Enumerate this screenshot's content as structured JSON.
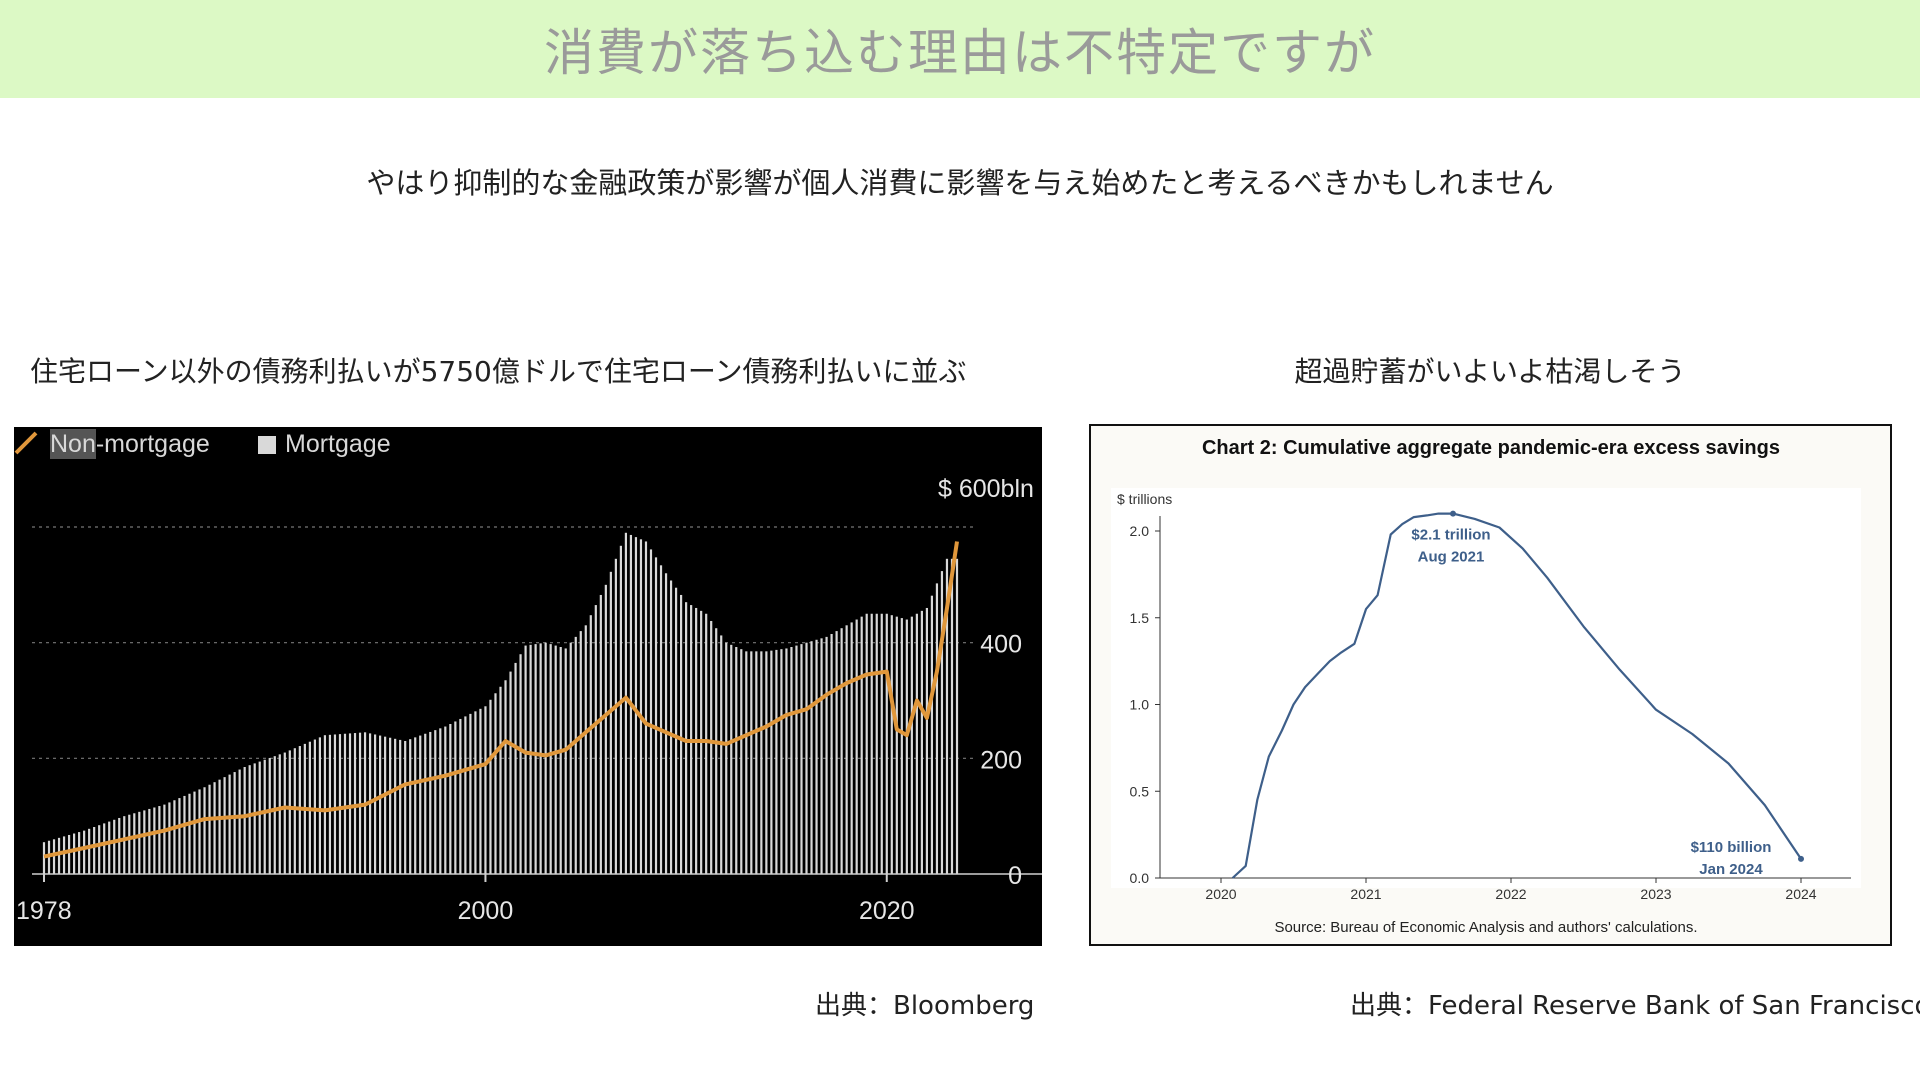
{
  "banner": {
    "title": "消費が落ち込む理由は不特定ですが"
  },
  "subtitle": "やはり抑制的な金融政策が影響が個人消費に影響を与え始めたと考えるべきかもしれません",
  "left_panel": {
    "heading": "住宅ローン以外の債務利払いが5750億ドルで住宅ローン債務利払いに並ぶ",
    "source": "出典：Bloomberg"
  },
  "right_panel": {
    "heading": "超過貯蓄がいよいよ枯渇しそう",
    "source": "出典：Federal Reserve Bank of San Francisco"
  },
  "colors": {
    "banner_bg": "#dcf9c5",
    "left_bg": "#000000",
    "non_mortgage": "#e0973b",
    "mortgage": "#d9d9d9",
    "savings_line": "#3e5f8a"
  },
  "chart_data": [
    {
      "type": "bar",
      "legend": [
        "Non-mortgage",
        "Mortgage"
      ],
      "legend_placement": "top-left",
      "top_label": "$ 600bln",
      "y_ticks": [
        "400",
        "200",
        "0"
      ],
      "x_ticks": [
        "1978",
        "2000",
        "2020"
      ],
      "ylim": [
        0,
        600
      ],
      "grid": true,
      "series": [
        {
          "name": "Mortgage",
          "type": "bar",
          "x": [
            1978,
            1980,
            1982,
            1984,
            1986,
            1988,
            1990,
            1992,
            1994,
            1996,
            1998,
            2000,
            2001,
            2002,
            2003,
            2004,
            2005,
            2006,
            2007,
            2008,
            2009,
            2010,
            2011,
            2012,
            2013,
            2014,
            2015,
            2016,
            2017,
            2018,
            2019,
            2020,
            2021,
            2022,
            2023
          ],
          "values": [
            55,
            75,
            100,
            120,
            150,
            185,
            210,
            240,
            245,
            230,
            255,
            290,
            335,
            395,
            400,
            390,
            430,
            500,
            590,
            575,
            520,
            470,
            450,
            400,
            385,
            385,
            390,
            400,
            410,
            430,
            450,
            450,
            440,
            460,
            545
          ]
        },
        {
          "name": "Non-mortgage",
          "type": "line",
          "x": [
            1978,
            1980,
            1982,
            1984,
            1986,
            1988,
            1990,
            1992,
            1994,
            1996,
            1998,
            2000,
            2001,
            2002,
            2003,
            2004,
            2005,
            2006,
            2007,
            2008,
            2009,
            2010,
            2011,
            2012,
            2013,
            2014,
            2015,
            2016,
            2017,
            2018,
            2019,
            2020,
            2020.5,
            2021,
            2021.5,
            2022,
            2022.5,
            2023,
            2023.5
          ],
          "values": [
            30,
            45,
            60,
            75,
            95,
            100,
            115,
            110,
            120,
            155,
            170,
            190,
            230,
            210,
            205,
            215,
            245,
            275,
            305,
            260,
            245,
            230,
            230,
            225,
            240,
            255,
            275,
            285,
            310,
            330,
            345,
            350,
            250,
            240,
            300,
            270,
            350,
            460,
            575
          ]
        }
      ]
    },
    {
      "type": "line",
      "title": "Chart 2: Cumulative aggregate pandemic-era excess savings",
      "ylabel": "$ trillions",
      "y_ticks": [
        "2.0",
        "1.5",
        "1.0",
        "0.5",
        "0.0"
      ],
      "x_ticks": [
        "2020",
        "2021",
        "2022",
        "2023",
        "2024"
      ],
      "xlim": [
        2019.6,
        2024.4
      ],
      "ylim": [
        0,
        2.1
      ],
      "grid": false,
      "source_note": "Source: Bureau of Economic Analysis and authors' calculations.",
      "annotations": [
        {
          "lines": [
            "$2.1 trillion",
            "Aug 2021"
          ],
          "x": 2021.6,
          "y": 2.1
        },
        {
          "lines": [
            "$110 billion",
            "Jan 2024"
          ],
          "x": 2024.0,
          "y": 0.11
        }
      ],
      "series": [
        {
          "x": [
            2020.08,
            2020.17,
            2020.25,
            2020.33,
            2020.42,
            2020.5,
            2020.58,
            2020.67,
            2020.75,
            2020.83,
            2020.92,
            2021.0,
            2021.08,
            2021.17,
            2021.25,
            2021.33,
            2021.42,
            2021.5,
            2021.6,
            2021.75,
            2021.92,
            2022.08,
            2022.25,
            2022.5,
            2022.75,
            2023.0,
            2023.25,
            2023.5,
            2023.75,
            2024.0
          ],
          "values": [
            0.0,
            0.07,
            0.45,
            0.7,
            0.85,
            1.0,
            1.1,
            1.18,
            1.25,
            1.3,
            1.35,
            1.55,
            1.63,
            1.98,
            2.04,
            2.08,
            2.09,
            2.1,
            2.1,
            2.07,
            2.02,
            1.9,
            1.73,
            1.45,
            1.2,
            0.97,
            0.83,
            0.66,
            0.42,
            0.11
          ]
        }
      ]
    }
  ]
}
